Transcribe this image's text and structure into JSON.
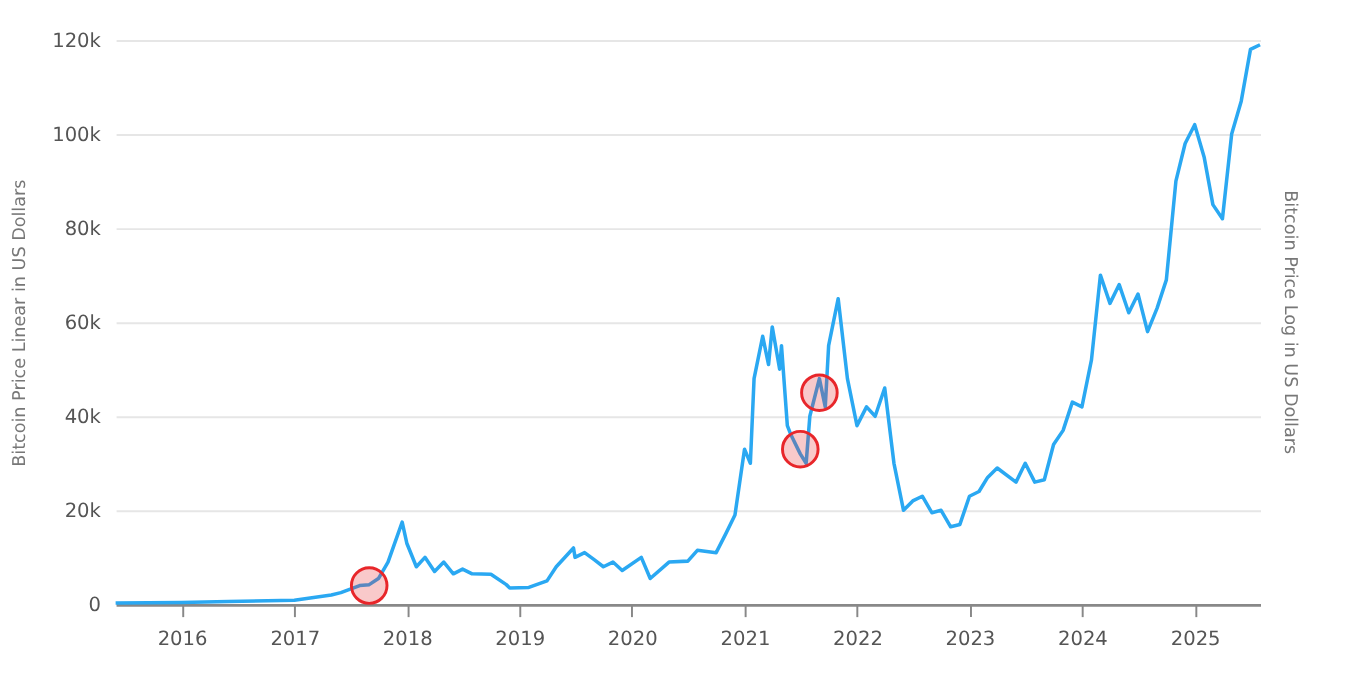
{
  "chart_data": {
    "type": "line",
    "ylabel": "Bitcoin Price Linear in US Dollars",
    "y2label": "Bitcoin Price Log in US Dollars",
    "xlim": [
      "2015-06",
      "2025-08"
    ],
    "xticks": [
      {
        "value": "2016",
        "label": "2016"
      },
      {
        "value": "2017",
        "label": "2017"
      },
      {
        "value": "2018",
        "label": "2018"
      },
      {
        "value": "2019",
        "label": "2019"
      },
      {
        "value": "2020",
        "label": "2020"
      },
      {
        "value": "2021",
        "label": "2021"
      },
      {
        "value": "2022",
        "label": "2022"
      },
      {
        "value": "2023",
        "label": "2023"
      },
      {
        "value": "2024",
        "label": "2024"
      },
      {
        "value": "2025",
        "label": "2025"
      }
    ],
    "ylim": [
      0,
      120000
    ],
    "yticks": [
      {
        "value": 0,
        "label": "0"
      },
      {
        "value": 20000,
        "label": "20k"
      },
      {
        "value": 40000,
        "label": "40k"
      },
      {
        "value": 60000,
        "label": "60k"
      },
      {
        "value": 80000,
        "label": "80k"
      },
      {
        "value": 100000,
        "label": "100k"
      },
      {
        "value": 120000,
        "label": "120k"
      }
    ],
    "grid": "y",
    "series": [
      {
        "color": "#2aa8f2",
        "marker": "none",
        "x": [
          "2015-06",
          "2016-01",
          "2016-06",
          "2017-01",
          "2017-05",
          "2017-06",
          "2017-08",
          "2017-09",
          "2017-10",
          "2017-11",
          "2017-12-17",
          "2018-01",
          "2018-02",
          "2018-03",
          "2018-04",
          "2018-05",
          "2018-06",
          "2018-07",
          "2018-08",
          "2018-10",
          "2018-11-20",
          "2018-12",
          "2019-02",
          "2019-04",
          "2019-05",
          "2019-06-26",
          "2019-07",
          "2019-08",
          "2019-09",
          "2019-10",
          "2019-11",
          "2019-12",
          "2020-02",
          "2020-03",
          "2020-05",
          "2020-07",
          "2020-08",
          "2020-10",
          "2020-11",
          "2020-12",
          "2021-01",
          "2021-01-20",
          "2021-02",
          "2021-03",
          "2021-03-20",
          "2021-04",
          "2021-04-25",
          "2021-05",
          "2021-05-20",
          "2021-06",
          "2021-07",
          "2021-07-20",
          "2021-08",
          "2021-09",
          "2021-09-20",
          "2021-10",
          "2021-11",
          "2021-12",
          "2022-01",
          "2022-02",
          "2022-03",
          "2022-04",
          "2022-05",
          "2022-06",
          "2022-07",
          "2022-08",
          "2022-09",
          "2022-10",
          "2022-11",
          "2022-12",
          "2023-01",
          "2023-02",
          "2023-03",
          "2023-04",
          "2023-06",
          "2023-07",
          "2023-08",
          "2023-09",
          "2023-10",
          "2023-11",
          "2023-12",
          "2024-01",
          "2024-02",
          "2024-03",
          "2024-04",
          "2024-05",
          "2024-06",
          "2024-07",
          "2024-08",
          "2024-09",
          "2024-10",
          "2024-11",
          "2024-12",
          "2025-01",
          "2025-02",
          "2025-03",
          "2025-04",
          "2025-05",
          "2025-06",
          "2025-07",
          "2025-08"
        ],
        "values": [
          300,
          400,
          600,
          900,
          2000,
          2500,
          4000,
          4200,
          5500,
          9000,
          17500,
          13000,
          8000,
          10000,
          7000,
          9000,
          6500,
          7500,
          6500,
          6400,
          4200,
          3500,
          3600,
          5000,
          8000,
          12000,
          10000,
          11000,
          9500,
          8000,
          9000,
          7200,
          10000,
          5500,
          9000,
          9200,
          11500,
          11000,
          15000,
          19000,
          33000,
          30000,
          48000,
          57000,
          51000,
          59000,
          50000,
          55000,
          38000,
          36000,
          32000,
          30000,
          40000,
          48000,
          42000,
          55000,
          65000,
          48000,
          38000,
          42000,
          40000,
          46000,
          30000,
          20000,
          22000,
          23000,
          19500,
          20000,
          16500,
          17000,
          23000,
          24000,
          27000,
          29000,
          26000,
          30000,
          26000,
          26500,
          34000,
          37000,
          43000,
          42000,
          52000,
          70000,
          64000,
          68000,
          62000,
          66000,
          58000,
          63000,
          69000,
          90000,
          98000,
          102000,
          95000,
          85000,
          82000,
          100000,
          107000,
          118000,
          119000
        ]
      },
      {
        "type": "scatter",
        "color": "#e8262a",
        "marker": "circle",
        "x": [
          "2017-09",
          "2021-07",
          "2021-09"
        ],
        "values": [
          4000,
          33000,
          45000
        ]
      }
    ]
  }
}
